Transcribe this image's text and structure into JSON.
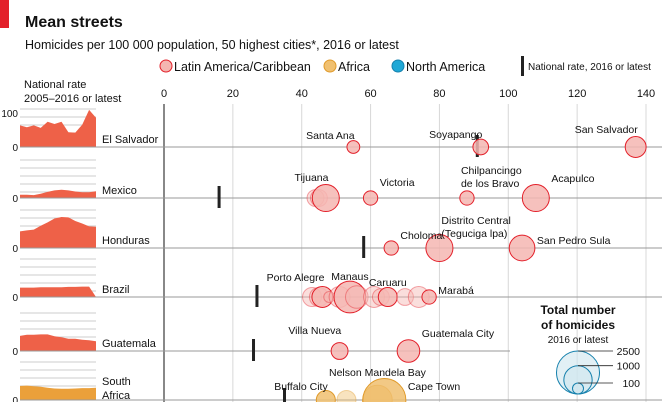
{
  "header": {
    "title": "Mean streets",
    "subtitle": "Homicides per 100 000 population, 50 highest cities*, 2016 or latest"
  },
  "legend": {
    "items": [
      {
        "label": "Latin America/Caribbean",
        "color": "#f4b6b1",
        "stroke": "#e3202a"
      },
      {
        "label": "Africa",
        "color": "#f0c070",
        "stroke": "#e09a2a"
      },
      {
        "label": "North America",
        "color": "#1fa8d6",
        "stroke": "#1681ad"
      }
    ],
    "national_marker": "National rate, 2016 or latest"
  },
  "left_panel": {
    "title_line1": "National rate",
    "title_line2": "2005–2016 or latest",
    "top_tick": "100",
    "zero_tick": "0"
  },
  "size_key": {
    "title_line1": "Total number",
    "title_line2": "of homicides",
    "subtitle": "2016 or latest",
    "values": [
      "2500",
      "1000",
      "100"
    ]
  },
  "chart_data": {
    "type": "scatter",
    "title": "Mean streets",
    "xlabel": "Homicides per 100 000 population",
    "xlim": [
      0,
      140
    ],
    "xticks": [
      "0",
      "20",
      "40",
      "60",
      "80",
      "100",
      "120",
      "140"
    ],
    "countries": [
      {
        "name": "El Salvador",
        "region": "latam",
        "national_rate": 91,
        "history": [
          60,
          55,
          60,
          53,
          70,
          64,
          70,
          41,
          40,
          62,
          103,
          81
        ],
        "cities": [
          {
            "name": "Santa Ana",
            "rate": 55,
            "homicides": 150,
            "label": true
          },
          {
            "name": "Soyapango",
            "rate": 92,
            "homicides": 250,
            "label": true
          },
          {
            "name": "San Salvador",
            "rate": 137,
            "homicides": 500,
            "label": true
          }
        ]
      },
      {
        "name": "Mexico",
        "region": "latam",
        "national_rate": 16,
        "history": [
          9,
          9,
          8,
          12,
          17,
          21,
          23,
          21,
          18,
          16,
          16,
          19
        ],
        "cities": [
          {
            "name": "",
            "rate": 44,
            "homicides": 300,
            "label": false
          },
          {
            "name": "",
            "rate": 45,
            "homicides": 300,
            "label": false
          },
          {
            "name": "Tijuana",
            "rate": 47,
            "homicides": 900,
            "label": true
          },
          {
            "name": "Victoria",
            "rate": 60,
            "homicides": 200,
            "label": true
          },
          {
            "name": "Chilpancingo de los Bravo",
            "rate": 88,
            "homicides": 200,
            "label": true
          },
          {
            "name": "Acapulco",
            "rate": 108,
            "homicides": 900,
            "label": true
          }
        ]
      },
      {
        "name": "Honduras",
        "region": "latam",
        "national_rate": 58,
        "history": [
          46,
          49,
          51,
          62,
          71,
          82,
          86,
          85,
          75,
          68,
          60,
          59
        ],
        "cities": [
          {
            "name": "Choloma",
            "rate": 66,
            "homicides": 200,
            "label": true
          },
          {
            "name": "Distrito Central (Teguciga lpa)",
            "rate": 80,
            "homicides": 900,
            "label": true
          },
          {
            "name": "San Pedro Sula",
            "rate": 104,
            "homicides": 800,
            "label": true
          }
        ]
      },
      {
        "name": "Brazil",
        "region": "latam",
        "national_rate": 27,
        "history": [
          26,
          26,
          26,
          27,
          27,
          27,
          27,
          28,
          28,
          29,
          29,
          0
        ],
        "cities": [
          {
            "name": "",
            "rate": 43,
            "homicides": 400,
            "label": false
          },
          {
            "name": "",
            "rate": 45,
            "homicides": 400,
            "label": false
          },
          {
            "name": "Porto Alegre",
            "rate": 46,
            "homicides": 500,
            "label": true
          },
          {
            "name": "",
            "rate": 48,
            "homicides": 100,
            "label": false
          },
          {
            "name": "",
            "rate": 51,
            "homicides": 500,
            "label": false
          },
          {
            "name": "Manaus",
            "rate": 54,
            "homicides": 1300,
            "label": true
          },
          {
            "name": "",
            "rate": 56,
            "homicides": 600,
            "label": false
          },
          {
            "name": "",
            "rate": 61,
            "homicides": 500,
            "label": false
          },
          {
            "name": "",
            "rate": 63,
            "homicides": 300,
            "label": false
          },
          {
            "name": "Caruaru",
            "rate": 65,
            "homicides": 400,
            "label": true
          },
          {
            "name": "",
            "rate": 70,
            "homicides": 300,
            "label": false
          },
          {
            "name": "",
            "rate": 74,
            "homicides": 500,
            "label": false
          },
          {
            "name": "Marabá",
            "rate": 77,
            "homicides": 200,
            "label": true
          }
        ]
      },
      {
        "name": "Guatemala",
        "region": "latam",
        "national_rate": 26,
        "history": [
          42,
          45,
          45,
          46,
          46,
          41,
          38,
          34,
          34,
          31,
          30,
          27
        ],
        "cities": [
          {
            "name": "Villa Nueva",
            "rate": 51,
            "homicides": 300,
            "label": true
          },
          {
            "name": "Guatemala City",
            "rate": 71,
            "homicides": 600,
            "label": true
          }
        ]
      },
      {
        "name": "South Africa",
        "region": "africa",
        "national_rate": 35,
        "history": [
          39,
          40,
          38,
          37,
          34,
          32,
          31,
          31,
          32,
          33,
          33,
          34
        ],
        "cities": [
          {
            "name": "Buffalo City",
            "rate": 47,
            "homicides": 400,
            "label": true
          },
          {
            "name": "",
            "rate": 53,
            "homicides": 400,
            "label": false
          },
          {
            "name": "Nelson Mandela Bay",
            "rate": 62,
            "homicides": 1100,
            "label": true
          },
          {
            "name": "Cape Town",
            "rate": 64,
            "homicides": 2500,
            "label": true
          }
        ]
      }
    ]
  }
}
